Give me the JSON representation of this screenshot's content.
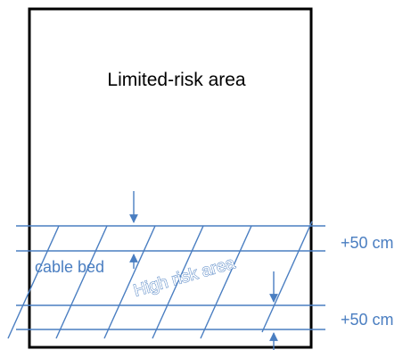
{
  "labels": {
    "limited_risk_area": "Limited-risk area",
    "cable_bed": "cable bed",
    "high_risk_area": "High risk area",
    "offset_top": "+50 cm",
    "offset_bottom": "+50 cm"
  },
  "colors": {
    "frame": "#000000",
    "lines": "#4a7ec1",
    "text_blue": "#4a7ec1"
  }
}
